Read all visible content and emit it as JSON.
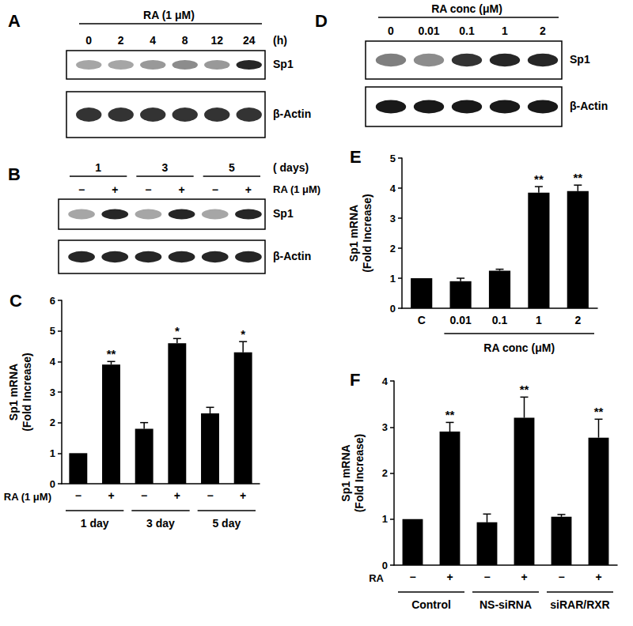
{
  "chart_data": [
    {
      "type": "bar",
      "panel": "C",
      "y_label": "Sp1 mRNA\n(Fold Increase)",
      "categories": [
        "−",
        "+",
        "−",
        "+",
        "−",
        "+"
      ],
      "values": [
        1,
        3.9,
        1.8,
        4.6,
        2.3,
        4.3
      ],
      "errors": [
        0,
        0.1,
        0.2,
        0.15,
        0.2,
        0.35
      ],
      "annotations": [
        null,
        "**",
        null,
        "*",
        null,
        "*"
      ],
      "row_label": "RA (1 μM)",
      "groups": [
        "1 day",
        "3 day",
        "5 day"
      ],
      "color": "#000000",
      "ylim": [
        0,
        6
      ],
      "yticks": [
        0,
        1,
        2,
        3,
        4,
        5,
        6
      ],
      "grid": false
    },
    {
      "type": "bar",
      "panel": "E",
      "y_label": "Sp1 mRNA\n(Fold Increase)",
      "categories": [
        "C",
        "0.01",
        "0.1",
        "1",
        "2"
      ],
      "values": [
        1,
        0.9,
        1.25,
        3.85,
        3.9
      ],
      "errors": [
        0,
        0.1,
        0.05,
        0.2,
        0.2
      ],
      "annotations": [
        null,
        null,
        null,
        "**",
        "**"
      ],
      "group_label": "RA conc (μM)",
      "group_from": "0.01",
      "group_to": "2",
      "color": "#000000",
      "ylim": [
        0,
        5
      ],
      "yticks": [
        0,
        1,
        2,
        3,
        4,
        5
      ],
      "grid": false
    },
    {
      "type": "bar",
      "panel": "F",
      "y_label": "Sp1 mRNA\n(Fold Increase)",
      "categories": [
        "−",
        "+",
        "−",
        "+",
        "−",
        "+"
      ],
      "values": [
        1,
        2.9,
        0.93,
        3.2,
        1.05,
        2.77
      ],
      "errors": [
        0,
        0.2,
        0.18,
        0.45,
        0.05,
        0.4
      ],
      "annotations": [
        null,
        "**",
        null,
        "**",
        null,
        "**"
      ],
      "row_label": "RA",
      "groups": [
        "Control",
        "NS-siRNA",
        "siRAR/RXR"
      ],
      "color": "#000000",
      "ylim": [
        0,
        4
      ],
      "yticks": [
        0,
        1,
        2,
        3,
        4
      ],
      "grid": false
    }
  ],
  "blots": [
    {
      "panel": "A",
      "header": "RA (1 μM)",
      "lanes": [
        "0",
        "2",
        "4",
        "8",
        "12",
        "24"
      ],
      "lane_unit": "(h)",
      "bands": [
        {
          "label": "Sp1",
          "intensity": [
            0.35,
            0.35,
            0.4,
            0.45,
            0.4,
            0.85
          ]
        },
        {
          "label": "β-Actin",
          "intensity": [
            0.8,
            0.8,
            0.8,
            0.8,
            0.8,
            0.8
          ]
        }
      ]
    },
    {
      "panel": "B",
      "groups": [
        "1",
        "3",
        "5"
      ],
      "group_unit": "( days)",
      "row_label": "RA (1 μM)",
      "lanes": [
        "−",
        "+",
        "−",
        "+",
        "−",
        "+"
      ],
      "bands": [
        {
          "label": "Sp1",
          "intensity": [
            0.35,
            0.85,
            0.35,
            0.85,
            0.35,
            0.85
          ]
        },
        {
          "label": "β-Actin",
          "intensity": [
            0.85,
            0.85,
            0.85,
            0.85,
            0.85,
            0.85
          ]
        }
      ]
    },
    {
      "panel": "D",
      "header": "RA conc (μM)",
      "lanes": [
        "0",
        "0.01",
        "0.1",
        "1",
        "2"
      ],
      "bands": [
        {
          "label": "Sp1",
          "intensity": [
            0.5,
            0.45,
            0.8,
            0.85,
            0.85
          ]
        },
        {
          "label": "β-Actin",
          "intensity": [
            0.9,
            0.9,
            0.9,
            0.9,
            0.9
          ]
        }
      ]
    }
  ]
}
